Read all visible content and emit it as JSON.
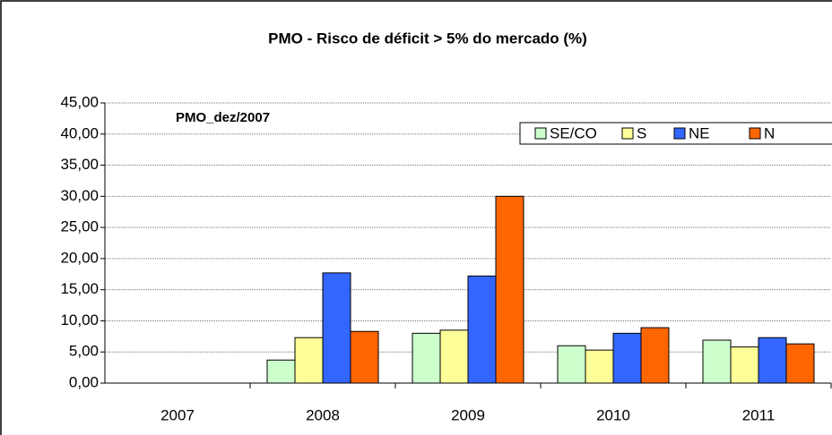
{
  "chart_data": {
    "type": "bar",
    "title": "PMO -  Risco de déficit > 5% do mercado (%)",
    "annotation": "PMO_dez/2007",
    "categories": [
      "2007",
      "2008",
      "2009",
      "2010",
      "2011"
    ],
    "series": [
      {
        "name": "SE/CO",
        "color": "#ccffcc",
        "values": [
          0,
          3.7,
          8.0,
          6.0,
          6.9
        ]
      },
      {
        "name": "S",
        "color": "#ffff99",
        "values": [
          0,
          7.3,
          8.5,
          5.3,
          5.8
        ]
      },
      {
        "name": "NE",
        "color": "#3366ff",
        "values": [
          0,
          17.7,
          17.2,
          8.0,
          7.3
        ]
      },
      {
        "name": "N",
        "color": "#ff6600",
        "values": [
          0,
          8.3,
          30.0,
          8.9,
          6.3
        ]
      }
    ],
    "ylim": [
      0,
      45
    ],
    "yticks": [
      {
        "value": 0,
        "label": "0,00"
      },
      {
        "value": 5,
        "label": "5,00"
      },
      {
        "value": 10,
        "label": "10,00"
      },
      {
        "value": 15,
        "label": "15,00"
      },
      {
        "value": 20,
        "label": "20,00"
      },
      {
        "value": 25,
        "label": "25,00"
      },
      {
        "value": 30,
        "label": "30,00"
      },
      {
        "value": 35,
        "label": "35,00"
      },
      {
        "value": 40,
        "label": "40,00"
      },
      {
        "value": 45,
        "label": "45,00"
      }
    ],
    "grid": true,
    "legend": "top-right"
  }
}
